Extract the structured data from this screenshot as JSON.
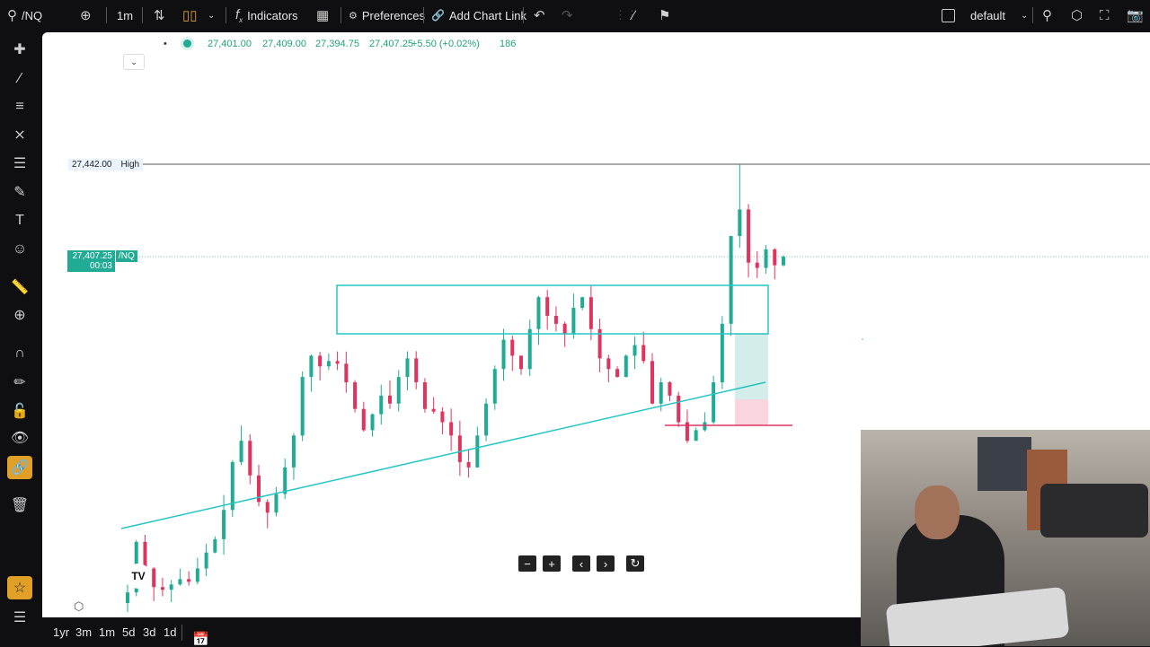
{
  "topbar": {
    "symbol": "/NQ",
    "interval": "1m",
    "indicators_label": "Indicators",
    "preferences_label": "Preferences",
    "add_chart_link_label": "Add Chart Link",
    "layout_name": "default"
  },
  "legend": {
    "open": "27,401.00",
    "high": "27,409.00",
    "low": "27,394.75",
    "close": "27,407.25",
    "change": "+5.50 (+0.02%)",
    "volume": "186"
  },
  "price_labels": {
    "high_value": "27,442.00",
    "high_label": "High",
    "last_price": "27,407.25",
    "countdown": "00:03",
    "symbol_tag": "/NQ"
  },
  "bottombar": {
    "ranges": [
      "1yr",
      "3m",
      "1m",
      "5d",
      "3d",
      "1d"
    ]
  },
  "colors": {
    "up": "#22ab94",
    "down": "#e0345e",
    "drawing": "#26c6c6",
    "accent": "#e0a028",
    "background": "#ffffff",
    "toolbar": "#0f0f11"
  },
  "chart_data": {
    "type": "candlestick",
    "interval": "1m",
    "high_line": 27442.0,
    "last_price": 27407.25,
    "closes": [
      27281,
      27300,
      27290,
      27283,
      27282,
      27284,
      27286,
      27285,
      27290,
      27296,
      27301,
      27312,
      27330,
      27338,
      27325,
      27315,
      27311,
      27318,
      27328,
      27340,
      27362,
      27370,
      27366,
      27368,
      27367,
      27360,
      27350,
      27342,
      27348,
      27355,
      27352,
      27362,
      27369,
      27360,
      27350,
      27349,
      27345,
      27340,
      27330,
      27328,
      27340,
      27352,
      27365,
      27376,
      27370,
      27365,
      27380,
      27392,
      27385,
      27382,
      27378,
      27388,
      27392,
      27380,
      27369,
      27365,
      27362,
      27370,
      27374,
      27368,
      27352,
      27360,
      27355,
      27345,
      27338,
      27342,
      27345,
      27360,
      27382,
      27415,
      27425,
      27405,
      27403,
      27410,
      27404,
      27407.25
    ]
  }
}
